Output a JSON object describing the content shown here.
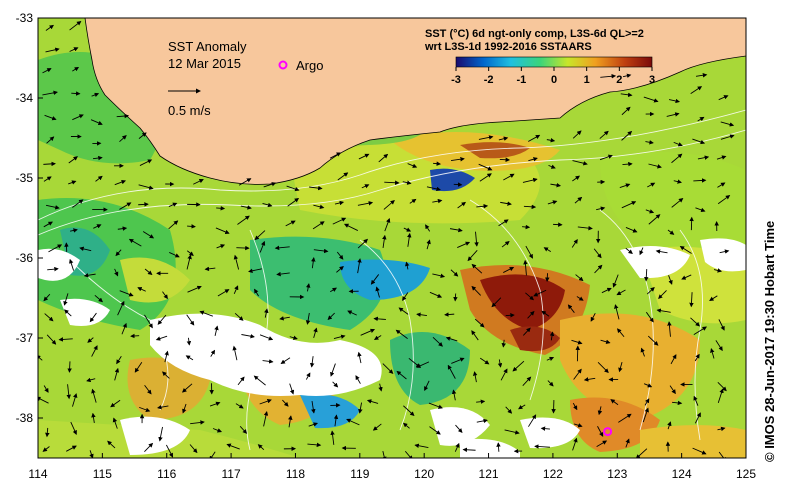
{
  "map": {
    "title": "SST Anomaly",
    "date": "12 Mar 2015",
    "argo_label": "Argo",
    "velocity_scale_label": "0.5 m/s",
    "legend": {
      "line1": "SST (°C) 6d ngt-only comp, L3S-6d QL>=2",
      "line2": "wrt L3S-1d 1992-2016 SSTAARS",
      "ticks": [
        "-3",
        "-2",
        "-1",
        "0",
        "1",
        "2",
        "3"
      ],
      "colors": [
        "#1a0a6e",
        "#0066cc",
        "#20c0e0",
        "#3cd47a",
        "#c8e62a",
        "#f0a020",
        "#c04010",
        "#7a0a0a"
      ]
    },
    "x_ticks": [
      "114",
      "115",
      "116",
      "117",
      "118",
      "119",
      "120",
      "121",
      "122",
      "123",
      "124",
      "125"
    ],
    "y_ticks": [
      "-33",
      "-34",
      "-35",
      "-36",
      "-37",
      "-38"
    ],
    "credit": "© IMOS 28-Jun-2017 19:30 Hobart Time",
    "argo_floats": [
      {
        "lon": 122.85,
        "lat": -38.17
      }
    ],
    "colors": {
      "land": "#f7c79c",
      "no_data": "#ffffff",
      "argo_marker": "#ff00ff"
    }
  }
}
